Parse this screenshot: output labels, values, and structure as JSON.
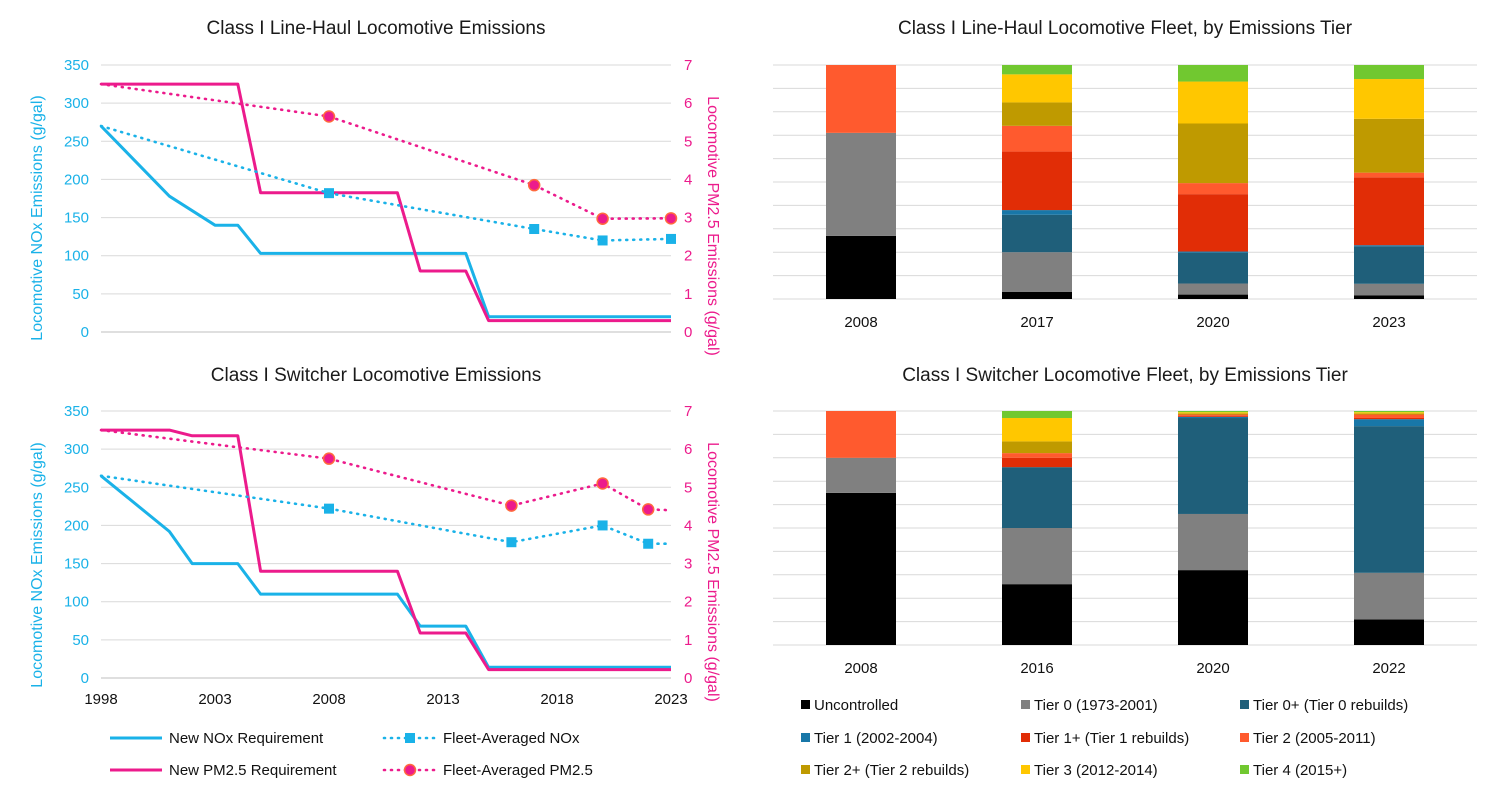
{
  "colors": {
    "nox": "#1ab2e8",
    "pm": "#ec1b8c",
    "grid": "#d9d9d9",
    "tiers": [
      "#000000",
      "#808080",
      "#1f5f7a",
      "#1877a8",
      "#e12d06",
      "#ff5a2e",
      "#bf9a00",
      "#ffc700",
      "#71c830"
    ]
  },
  "legend_lines": [
    {
      "label": "New NOx Requirement",
      "style": "solid",
      "color": "nox",
      "marker": "none"
    },
    {
      "label": "Fleet-Averaged NOx",
      "style": "dotted",
      "color": "nox",
      "marker": "square"
    },
    {
      "label": "New PM2.5 Requirement",
      "style": "solid",
      "color": "pm",
      "marker": "none"
    },
    {
      "label": "Fleet-Averaged PM2.5",
      "style": "dotted",
      "color": "pm",
      "marker": "circle"
    }
  ],
  "legend_tiers": [
    "Uncontrolled",
    "Tier 0 (1973-2001)",
    "Tier 0+ (Tier 0 rebuilds)",
    "Tier 1 (2002-2004)",
    "Tier 1+ (Tier 1 rebuilds)",
    "Tier 2 (2005-2011)",
    "Tier 2+ (Tier 2 rebuilds)",
    "Tier 3 (2012-2014)",
    "Tier 4 (2015+)"
  ],
  "chart_data": [
    {
      "type": "line",
      "title": "Class I Line-Haul Locomotive Emissions",
      "ylabel": "Locomotive NOx Emissions (g/gal)",
      "y2label": "Locomotive PM2.5 Emissions (g/gal)",
      "xlim": [
        1998,
        2023
      ],
      "ylim": [
        0,
        350
      ],
      "y2lim": [
        0,
        7
      ],
      "yticks": [
        "0",
        "50",
        "100",
        "150",
        "200",
        "250",
        "300",
        "350"
      ],
      "y2ticks": [
        "0",
        "1",
        "2",
        "3",
        "4",
        "5",
        "6",
        "7"
      ],
      "xticks": [],
      "series": [
        {
          "name": "New NOx Requirement",
          "axis": "left",
          "style": "solid",
          "x": [
            1998,
            2001,
            2003,
            2004,
            2005,
            2014,
            2015,
            2023
          ],
          "y": [
            270,
            178,
            140,
            140,
            103,
            103,
            20,
            20
          ]
        },
        {
          "name": "New PM2.5 Requirement",
          "axis": "right",
          "style": "solid",
          "x": [
            1998,
            2004,
            2005,
            2011,
            2012,
            2014,
            2015,
            2023
          ],
          "y": [
            6.5,
            6.5,
            3.65,
            3.65,
            1.6,
            1.6,
            0.3,
            0.3
          ]
        },
        {
          "name": "Fleet-Averaged NOx",
          "axis": "left",
          "style": "dotted",
          "marker": "square",
          "x": [
            1998,
            2008,
            2017,
            2020,
            2023
          ],
          "y": [
            270,
            182,
            135,
            120,
            122
          ],
          "markers_from": 1
        },
        {
          "name": "Fleet-Averaged PM2.5",
          "axis": "right",
          "style": "dotted",
          "marker": "circle",
          "x": [
            1998,
            2008,
            2017,
            2020,
            2023
          ],
          "y": [
            6.5,
            5.65,
            3.85,
            2.97,
            2.98
          ],
          "markers_from": 1
        }
      ]
    },
    {
      "type": "line",
      "title": "Class I Switcher Locomotive Emissions",
      "ylabel": "Locomotive NOx Emissions (g/gal)",
      "y2label": "Locomotive PM2.5 Emissions (g/gal)",
      "xlim": [
        1998,
        2023
      ],
      "ylim": [
        0,
        350
      ],
      "y2lim": [
        0,
        7
      ],
      "yticks": [
        "0",
        "50",
        "100",
        "150",
        "200",
        "250",
        "300",
        "350"
      ],
      "y2ticks": [
        "0",
        "1",
        "2",
        "3",
        "4",
        "5",
        "6",
        "7"
      ],
      "xticks": [
        "1998",
        "2003",
        "2008",
        "2013",
        "2018",
        "2023"
      ],
      "series": [
        {
          "name": "New NOx Requirement",
          "axis": "left",
          "style": "solid",
          "x": [
            1998,
            2001,
            2002,
            2004,
            2005,
            2011,
            2012,
            2014,
            2015,
            2023
          ],
          "y": [
            265,
            192,
            150,
            150,
            110,
            110,
            68,
            68,
            14,
            14
          ]
        },
        {
          "name": "New PM2.5 Requirement",
          "axis": "right",
          "style": "solid",
          "x": [
            1998,
            2001,
            2002,
            2004,
            2005,
            2011,
            2012,
            2014,
            2015,
            2023
          ],
          "y": [
            6.5,
            6.5,
            6.35,
            6.35,
            2.8,
            2.8,
            1.18,
            1.18,
            0.22,
            0.22
          ]
        },
        {
          "name": "Fleet-Averaged NOx",
          "axis": "left",
          "style": "dotted",
          "marker": "square",
          "x": [
            1998,
            2008,
            2016,
            2020,
            2022,
            2023
          ],
          "y": [
            265,
            222,
            178,
            200,
            176,
            176
          ],
          "markers": [
            2008,
            2016,
            2020,
            2022
          ]
        },
        {
          "name": "Fleet-Averaged PM2.5",
          "axis": "right",
          "style": "dotted",
          "marker": "circle",
          "x": [
            1998,
            2008,
            2016,
            2020,
            2022,
            2023
          ],
          "y": [
            6.5,
            5.75,
            4.52,
            5.1,
            4.42,
            4.4
          ],
          "markers": [
            2008,
            2016,
            2020,
            2022
          ]
        }
      ]
    },
    {
      "type": "bar",
      "stacked": true,
      "percent": true,
      "title": "Class I Line-Haul Locomotive Fleet, by Emissions Tier",
      "categories": [
        "2008",
        "2017",
        "2020",
        "2023"
      ],
      "series": [
        {
          "name": "Uncontrolled",
          "values": [
            27,
            3,
            2,
            1.5
          ]
        },
        {
          "name": "Tier 0 (1973-2001)",
          "values": [
            44,
            17,
            5,
            5
          ]
        },
        {
          "name": "Tier 0+ (Tier 0 rebuilds)",
          "values": [
            0,
            16,
            14,
            16
          ]
        },
        {
          "name": "Tier 1 (2002-2004)",
          "values": [
            0,
            2,
            0.5,
            0.5
          ]
        },
        {
          "name": "Tier 1+ (Tier 1 rebuilds)",
          "values": [
            0,
            25,
            26,
            29
          ]
        },
        {
          "name": "Tier 2 (2005-2011)",
          "values": [
            29,
            11,
            5,
            2
          ]
        },
        {
          "name": "Tier 2+ (Tier 2 rebuilds)",
          "values": [
            0,
            10,
            27,
            23
          ]
        },
        {
          "name": "Tier 3 (2012-2014)",
          "values": [
            0,
            12,
            19,
            17
          ]
        },
        {
          "name": "Tier 4 (2015+)",
          "values": [
            0,
            4,
            7.5,
            6
          ]
        }
      ]
    },
    {
      "type": "bar",
      "stacked": true,
      "percent": true,
      "title": "Class I Switcher Locomotive Fleet, by Emissions Tier",
      "categories": [
        "2008",
        "2016",
        "2020",
        "2022"
      ],
      "series": [
        {
          "name": "Uncontrolled",
          "values": [
            65,
            26,
            32,
            11
          ]
        },
        {
          "name": "Tier 0 (1973-2001)",
          "values": [
            15,
            24,
            24,
            20
          ]
        },
        {
          "name": "Tier 0+ (Tier 0 rebuilds)",
          "values": [
            0,
            26,
            41,
            63
          ]
        },
        {
          "name": "Tier 1 (2002-2004)",
          "values": [
            0,
            0,
            0.5,
            3
          ]
        },
        {
          "name": "Tier 1+ (Tier 1 rebuilds)",
          "values": [
            0,
            4,
            0.5,
            0.5
          ]
        },
        {
          "name": "Tier 2 (2005-2011)",
          "values": [
            20,
            2,
            0.5,
            1.5
          ]
        },
        {
          "name": "Tier 2+ (Tier 2 rebuilds)",
          "values": [
            0,
            5,
            0.5,
            0.5
          ]
        },
        {
          "name": "Tier 3 (2012-2014)",
          "values": [
            0,
            10,
            0.5,
            0.5
          ]
        },
        {
          "name": "Tier 4 (2015+)",
          "values": [
            0,
            3,
            0.5,
            0.5
          ]
        }
      ]
    }
  ]
}
